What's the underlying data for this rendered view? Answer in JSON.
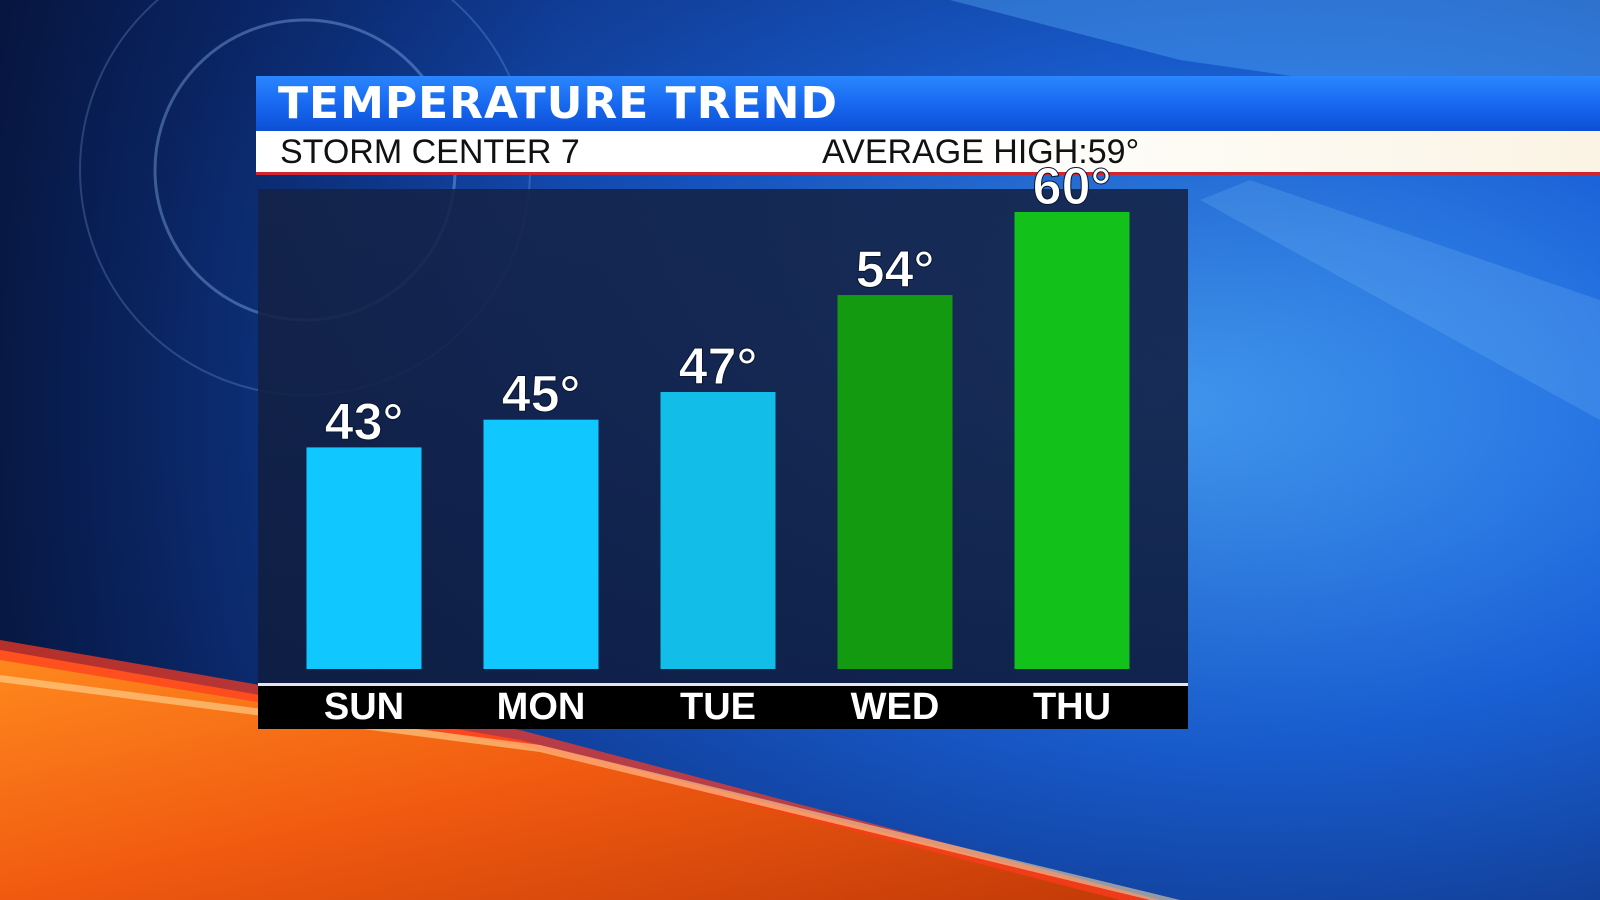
{
  "header": {
    "title": "TEMPERATURE TREND",
    "station": "STORM CENTER 7",
    "average_label": "AVERAGE HIGH:",
    "average_value": "59°"
  },
  "colors": {
    "cool_bar": "#10c8ff",
    "warm_bar": "#139a10",
    "hot_bar": "#12c21a",
    "title_bar": "#1766ee",
    "accent_red": "#d2242c"
  },
  "chart_data": {
    "type": "bar",
    "categories": [
      "SUN",
      "MON",
      "TUE",
      "WED",
      "THU"
    ],
    "values": [
      43,
      45,
      47,
      54,
      60
    ],
    "data_labels": [
      "43°",
      "45°",
      "47°",
      "54°",
      "60°"
    ],
    "bar_colors": [
      "#10c8ff",
      "#10c8ff",
      "#12bde8",
      "#139a10",
      "#12c21a"
    ],
    "title": "TEMPERATURE TREND",
    "xlabel": "",
    "ylabel": "",
    "grid": false,
    "legend": "none"
  }
}
